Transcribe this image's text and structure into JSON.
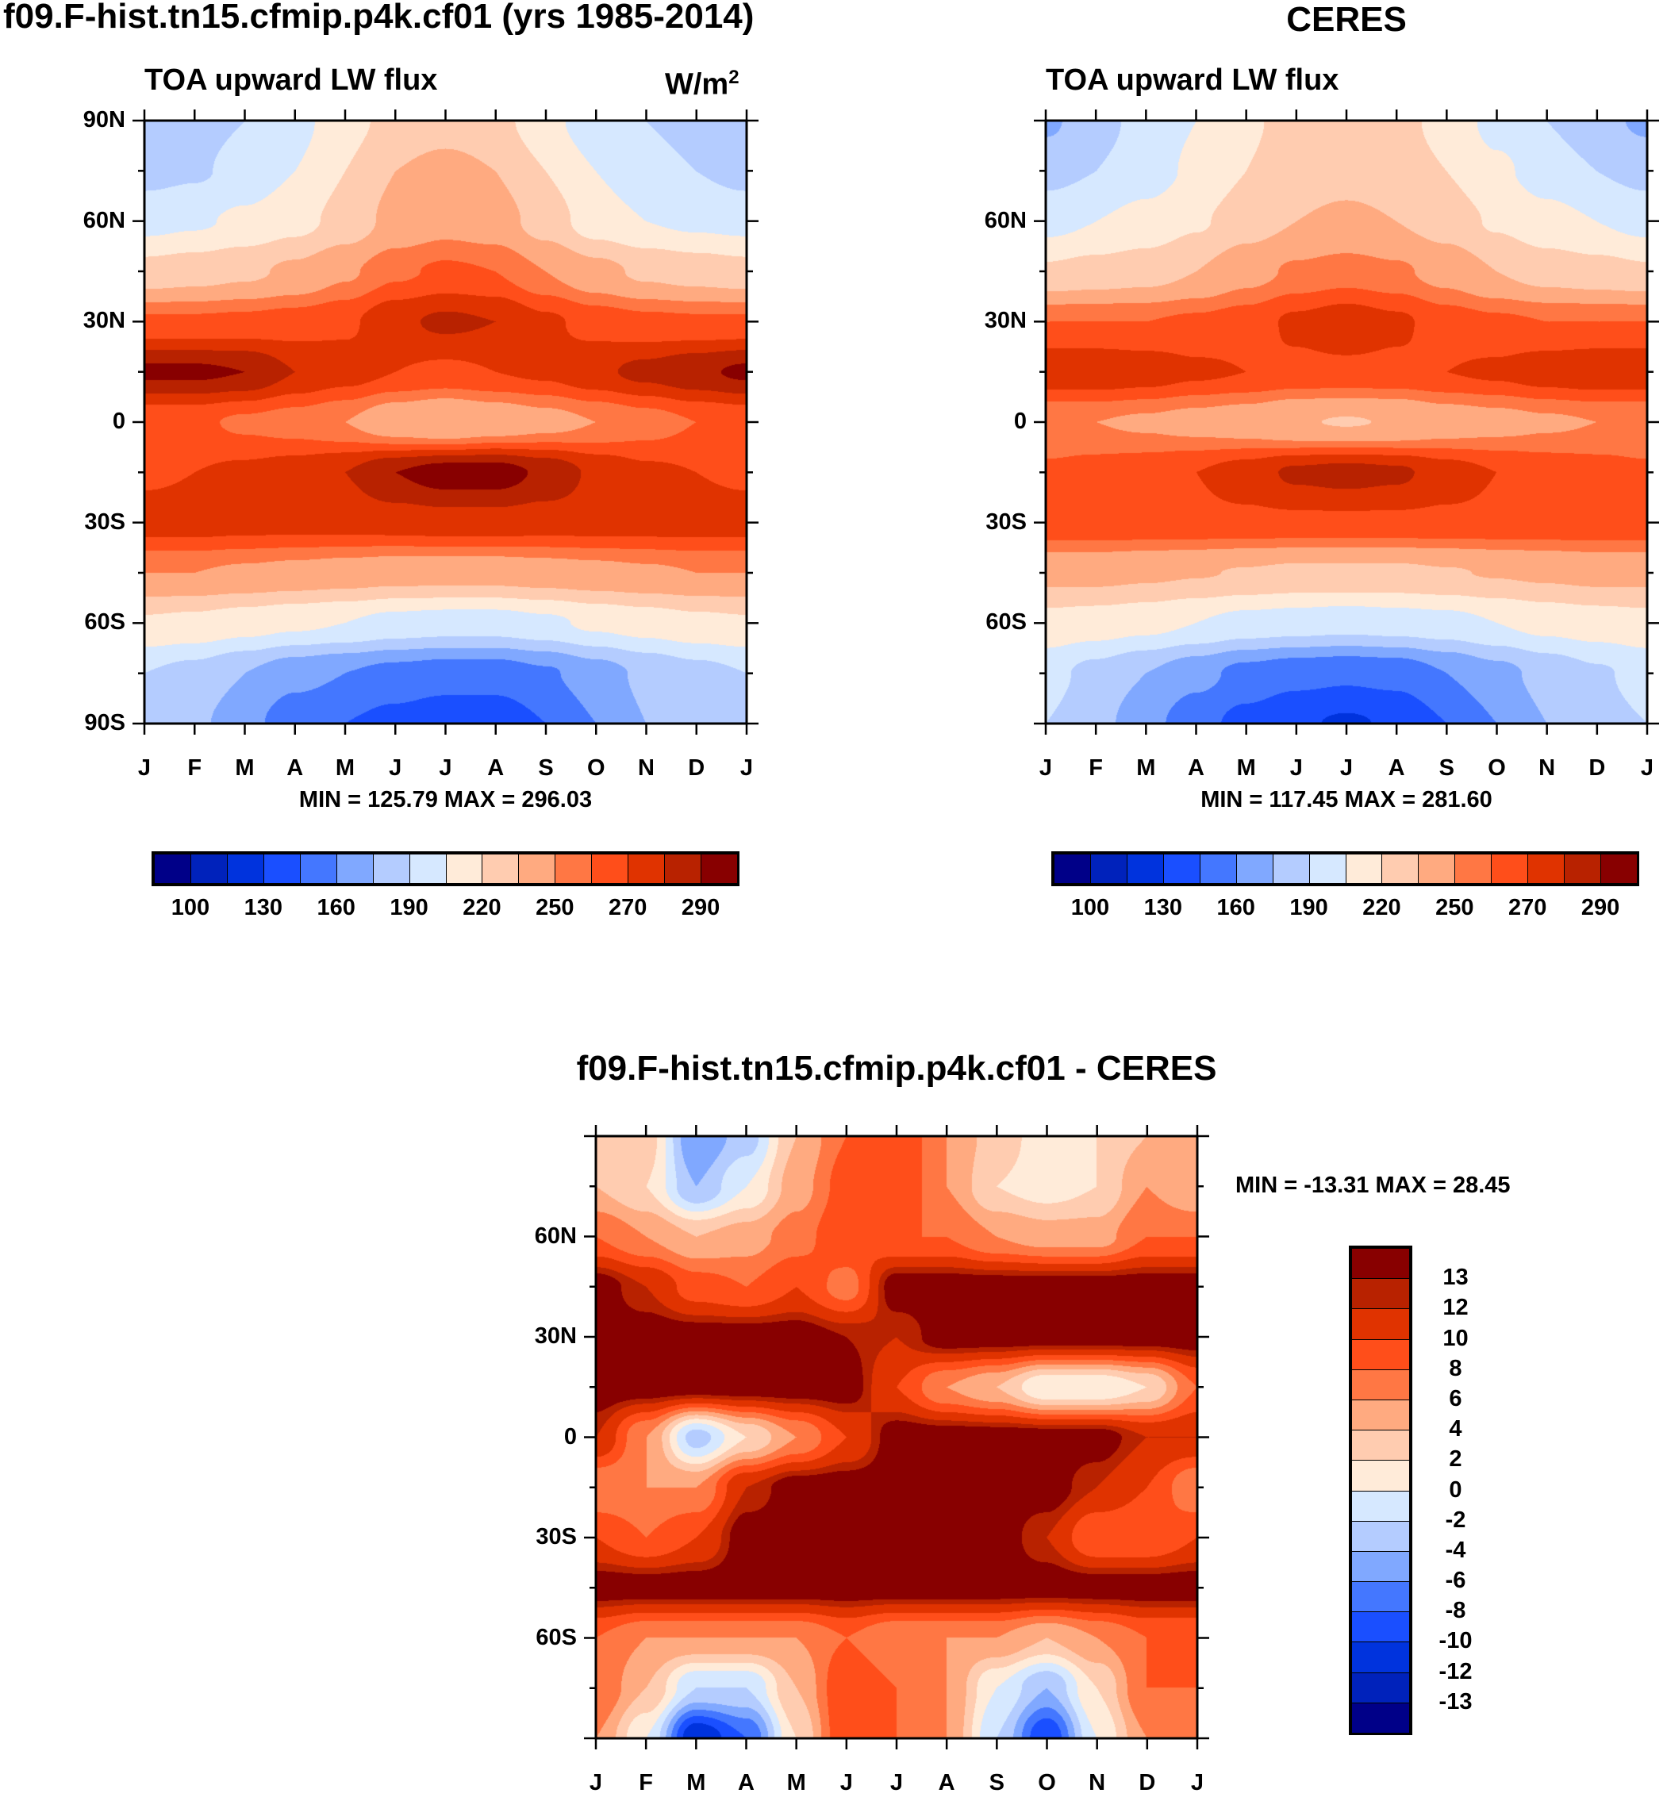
{
  "colors": [
    "#000088",
    "#0022bb",
    "#0033dd",
    "#1a4fff",
    "#4477ff",
    "#80a8ff",
    "#b4ccff",
    "#d6e8ff",
    "#ffebd9",
    "#ffccb0",
    "#ffaa80",
    "#ff7744",
    "#ff4e1a",
    "#e03300",
    "#b82200",
    "#880000"
  ],
  "months": [
    "J",
    "F",
    "M",
    "A",
    "M",
    "J",
    "J",
    "A",
    "S",
    "O",
    "N",
    "D",
    "J"
  ],
  "chart_data": [
    {
      "type": "heatmap",
      "title": "f09.F-hist.tn15.cfmip.p4k.cf01 (yrs 1985-2014)",
      "subtitle": "TOA upward LW flux",
      "units": "W/m",
      "units_sup": "2",
      "stats": "MIN = 125.79 MAX = 296.03",
      "xlabel": "",
      "ylabel": "",
      "ylim": [
        -90,
        90
      ],
      "yticks": [
        {
          "v": 90,
          "label": "90N"
        },
        {
          "v": 60,
          "label": "60N"
        },
        {
          "v": 30,
          "label": "30N"
        },
        {
          "v": 0,
          "label": "0"
        },
        {
          "v": -30,
          "label": "30S"
        },
        {
          "v": -60,
          "label": "60S"
        },
        {
          "v": -90,
          "label": "90S"
        }
      ],
      "levels": [
        100,
        115,
        130,
        145,
        160,
        175,
        190,
        205,
        220,
        235,
        250,
        260,
        270,
        280,
        290
      ],
      "colorbar_labels": [
        "100",
        "130",
        "160",
        "190",
        "220",
        "250",
        "270",
        "290"
      ],
      "lats": [
        90,
        75,
        60,
        45,
        30,
        15,
        0,
        -15,
        -30,
        -45,
        -60,
        -75,
        -90
      ],
      "values": [
        [
          175,
          185,
          190,
          200,
          215,
          225,
          228,
          225,
          210,
          195,
          190,
          185,
          175
        ],
        [
          185,
          188,
          195,
          205,
          220,
          235,
          240,
          235,
          220,
          205,
          195,
          190,
          185
        ],
        [
          200,
          203,
          208,
          215,
          225,
          240,
          245,
          242,
          228,
          212,
          205,
          202,
          200
        ],
        [
          225,
          228,
          232,
          238,
          248,
          258,
          262,
          260,
          250,
          240,
          232,
          228,
          225
        ],
        [
          262,
          262,
          263,
          265,
          268,
          278,
          282,
          280,
          272,
          266,
          263,
          262,
          262
        ],
        [
          292,
          292,
          290,
          280,
          275,
          270,
          268,
          270,
          272,
          278,
          283,
          288,
          292
        ],
        [
          262,
          262,
          258,
          255,
          250,
          240,
          235,
          240,
          245,
          250,
          255,
          260,
          262
        ],
        [
          268,
          270,
          272,
          275,
          280,
          290,
          295,
          295,
          288,
          278,
          272,
          270,
          268
        ],
        [
          275,
          275,
          274,
          274,
          274,
          275,
          276,
          276,
          275,
          275,
          275,
          275,
          275
        ],
        [
          250,
          250,
          248,
          246,
          244,
          242,
          242,
          242,
          244,
          246,
          248,
          250,
          250
        ],
        [
          218,
          216,
          212,
          208,
          205,
          200,
          198,
          198,
          202,
          208,
          212,
          216,
          218
        ],
        [
          190,
          185,
          175,
          165,
          160,
          155,
          152,
          152,
          158,
          168,
          178,
          185,
          190
        ],
        [
          185,
          178,
          165,
          150,
          145,
          140,
          135,
          135,
          145,
          160,
          175,
          182,
          185
        ]
      ]
    },
    {
      "type": "heatmap",
      "title": "CERES",
      "subtitle": "TOA upward LW flux",
      "stats": "MIN = 117.45 MAX = 281.60",
      "ylim": [
        -90,
        90
      ],
      "yticks": [
        {
          "v": 60,
          "label": "60N"
        },
        {
          "v": 30,
          "label": "30N"
        },
        {
          "v": 0,
          "label": "0"
        },
        {
          "v": -30,
          "label": "30S"
        },
        {
          "v": -60,
          "label": "60S"
        }
      ],
      "levels": [
        100,
        115,
        130,
        145,
        160,
        175,
        190,
        205,
        220,
        235,
        250,
        260,
        270,
        280,
        290
      ],
      "colorbar_labels": [
        "100",
        "130",
        "160",
        "190",
        "220",
        "250",
        "270",
        "290"
      ],
      "lats": [
        90,
        75,
        60,
        45,
        30,
        15,
        0,
        -15,
        -30,
        -45,
        -60,
        -75,
        -90
      ],
      "values": [
        [
          172,
          185,
          195,
          205,
          218,
          225,
          228,
          225,
          215,
          200,
          190,
          180,
          172
        ],
        [
          185,
          190,
          198,
          208,
          220,
          228,
          230,
          228,
          220,
          208,
          198,
          190,
          185
        ],
        [
          200,
          205,
          210,
          218,
          228,
          235,
          238,
          235,
          228,
          218,
          210,
          205,
          200
        ],
        [
          222,
          225,
          228,
          235,
          245,
          252,
          255,
          252,
          245,
          235,
          228,
          225,
          222
        ],
        [
          260,
          260,
          260,
          262,
          265,
          272,
          276,
          272,
          265,
          262,
          260,
          260,
          260
        ],
        [
          278,
          278,
          276,
          272,
          270,
          268,
          268,
          268,
          270,
          272,
          276,
          278,
          278
        ],
        [
          250,
          250,
          248,
          245,
          242,
          236,
          234,
          236,
          242,
          245,
          248,
          250,
          250
        ],
        [
          262,
          264,
          266,
          270,
          275,
          282,
          284,
          282,
          275,
          270,
          266,
          264,
          262
        ],
        [
          268,
          268,
          268,
          268,
          268,
          268,
          268,
          268,
          268,
          268,
          268,
          268,
          268
        ],
        [
          240,
          240,
          238,
          236,
          234,
          232,
          232,
          232,
          234,
          236,
          238,
          240,
          240
        ],
        [
          215,
          213,
          210,
          205,
          200,
          198,
          196,
          198,
          200,
          205,
          210,
          213,
          215
        ],
        [
          195,
          185,
          175,
          165,
          155,
          150,
          148,
          150,
          160,
          170,
          180,
          188,
          195
        ],
        [
          190,
          180,
          165,
          150,
          140,
          132,
          128,
          132,
          145,
          160,
          175,
          185,
          190
        ]
      ]
    },
    {
      "type": "heatmap",
      "title": "f09.F-hist.tn15.cfmip.p4k.cf01 - CERES",
      "stats": "MIN = -13.31 MAX =  28.45",
      "ylim": [
        -90,
        90
      ],
      "yticks": [
        {
          "v": 60,
          "label": "60N"
        },
        {
          "v": 30,
          "label": "30N"
        },
        {
          "v": 0,
          "label": "0"
        },
        {
          "v": -30,
          "label": "30S"
        },
        {
          "v": -60,
          "label": "60S"
        }
      ],
      "levels": [
        -13,
        -12,
        -10,
        -8,
        -6,
        -4,
        -2,
        0,
        2,
        4,
        6,
        8,
        10,
        12,
        13
      ],
      "colorbar_labels": [
        "13",
        "12",
        "10",
        "8",
        "6",
        "4",
        "2",
        "0",
        "-2",
        "-4",
        "-6",
        "-8",
        "-10",
        "-12",
        "-13"
      ],
      "lats": [
        90,
        75,
        60,
        45,
        30,
        15,
        0,
        -15,
        -30,
        -45,
        -60,
        -75,
        -90
      ],
      "values": [
        [
          4,
          3,
          -6,
          -3,
          4,
          8,
          10,
          6,
          3,
          1,
          2,
          4,
          4
        ],
        [
          4,
          2,
          -4,
          0,
          5,
          9,
          10,
          6,
          2,
          1,
          2,
          6,
          4
        ],
        [
          8,
          6,
          4,
          5,
          7,
          10,
          8,
          8,
          6,
          5,
          5,
          8,
          8
        ],
        [
          14,
          12,
          9,
          8,
          10,
          7,
          14,
          14,
          14,
          14,
          14,
          14,
          14
        ],
        [
          14,
          14,
          14,
          14,
          14,
          13,
          12,
          14,
          14,
          14,
          14,
          14,
          14
        ],
        [
          14,
          14,
          14,
          14,
          14,
          14,
          10,
          6,
          4,
          0,
          0,
          2,
          8
        ],
        [
          12,
          6,
          -3,
          2,
          6,
          10,
          14,
          14,
          14,
          14,
          14,
          12,
          12
        ],
        [
          6,
          6,
          6,
          12,
          14,
          14,
          14,
          14,
          14,
          14,
          12,
          10,
          6
        ],
        [
          10,
          8,
          10,
          14,
          14,
          14,
          14,
          14,
          14,
          12,
          8,
          8,
          10
        ],
        [
          14,
          14,
          14,
          14,
          14,
          14,
          14,
          14,
          14,
          14,
          14,
          14,
          14
        ],
        [
          8,
          6,
          6,
          6,
          6,
          8,
          6,
          6,
          6,
          4,
          6,
          8,
          8
        ],
        [
          8,
          4,
          -2,
          -2,
          4,
          10,
          8,
          6,
          0,
          -4,
          2,
          8,
          8
        ],
        [
          6,
          0,
          -12,
          -8,
          2,
          10,
          8,
          6,
          -2,
          -10,
          0,
          6,
          6
        ]
      ]
    }
  ]
}
